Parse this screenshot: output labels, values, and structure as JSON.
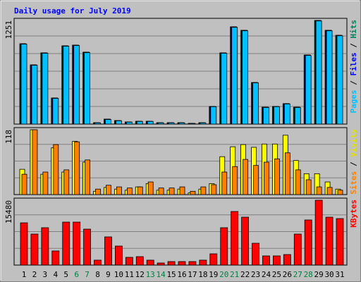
{
  "chart_data": {
    "type": "bar",
    "title": "Daily usage for July 2019",
    "categories": [
      "1",
      "2",
      "3",
      "4",
      "5",
      "6",
      "7",
      "8",
      "9",
      "10",
      "11",
      "12",
      "13",
      "14",
      "15",
      "16",
      "17",
      "18",
      "19",
      "20",
      "21",
      "22",
      "23",
      "24",
      "25",
      "26",
      "27",
      "28",
      "29",
      "30",
      "31"
    ],
    "category_colors": [
      "#000000",
      "#000000",
      "#000000",
      "#000000",
      "#000000",
      "#008040",
      "#008040",
      "#000000",
      "#000000",
      "#000000",
      "#000000",
      "#000000",
      "#008040",
      "#008040",
      "#000000",
      "#000000",
      "#000000",
      "#000000",
      "#000000",
      "#008040",
      "#008040",
      "#000000",
      "#000000",
      "#000000",
      "#000000",
      "#000000",
      "#008040",
      "#008040",
      "#000000",
      "#000000",
      "#000000"
    ],
    "panels": [
      {
        "ylim": [
          0,
          1251
        ],
        "yticks": [
          1251
        ],
        "grid": true,
        "series": [
          {
            "name": "Hits",
            "color": "#00805c",
            "values": [
              970,
              715,
              860,
              315,
              945,
              953,
              868,
              17,
              60,
              43,
              26,
              34,
              34,
              17,
              17,
              17,
              9,
              17,
              213,
              860,
              1174,
              1132,
              502,
              204,
              213,
              247,
              204,
              834,
              1251,
              1132,
              1072
            ]
          },
          {
            "name": "Files",
            "color": "#0000ff",
            "values": [
              970,
              715,
              860,
              315,
              945,
              953,
              868,
              17,
              60,
              43,
              26,
              34,
              34,
              17,
              17,
              17,
              9,
              17,
              213,
              860,
              1174,
              1132,
              502,
              204,
              213,
              247,
              204,
              834,
              1251,
              1132,
              1072
            ]
          },
          {
            "name": "Pages",
            "color": "#00c0ff",
            "values": [
              965,
              710,
              855,
              310,
              940,
              948,
              862,
              15,
              55,
              40,
              24,
              32,
              32,
              15,
              15,
              15,
              8,
              15,
              210,
              855,
              1168,
              1126,
              498,
              200,
              210,
              243,
              200,
              828,
              1245,
              1126,
              1066
            ]
          }
        ]
      },
      {
        "ylim": [
          0,
          118
        ],
        "yticks": [
          118
        ],
        "grid": true,
        "series": [
          {
            "name": "Visits",
            "color": "#ffff00",
            "values": [
              46,
              118,
              37,
              85,
              41,
              97,
              59,
              6,
              13,
              10,
              8,
              14,
              20,
              8,
              8,
              10,
              3,
              10,
              20,
              69,
              87,
              91,
              86,
              92,
              92,
              108,
              62,
              38,
              38,
              23,
              10
            ]
          },
          {
            "name": "Sites",
            "color": "#ff8000",
            "values": [
              37,
              118,
              41,
              91,
              45,
              96,
              63,
              10,
              17,
              14,
              12,
              14,
              23,
              12,
              12,
              14,
              6,
              14,
              18,
              41,
              51,
              64,
              53,
              59,
              65,
              76,
              45,
              27,
              14,
              13,
              8
            ]
          }
        ]
      },
      {
        "ylim": [
          0,
          15480
        ],
        "yticks": [
          15480
        ],
        "grid": true,
        "series": [
          {
            "name": "KBytes",
            "color": "#ff0000",
            "values": [
              10090,
              7400,
              8920,
              3370,
              10260,
              10260,
              8580,
              1180,
              6730,
              4540,
              1850,
              2020,
              1180,
              500,
              840,
              840,
              840,
              1180,
              2690,
              8920,
              12790,
              11440,
              5210,
              2190,
              2190,
              2520,
              7400,
              10770,
              15480,
              11440,
              11100
            ]
          }
        ]
      }
    ]
  }
}
